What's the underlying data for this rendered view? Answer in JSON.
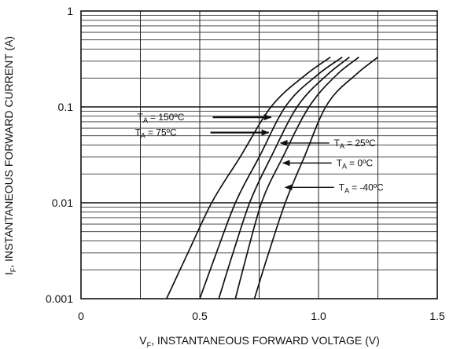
{
  "chart_data": {
    "type": "line",
    "title": "",
    "xlabel": {
      "prefix": "V",
      "sub": "F",
      "text": ", INSTANTANEOUS FORWARD VOLTAGE (V)"
    },
    "ylabel": {
      "prefix": "I",
      "sub": "F",
      "text": ", INSTANTANEOUS FORWARD CURRENT (A)"
    },
    "x_scale": "linear",
    "y_scale": "log",
    "xlim": [
      0,
      1.5
    ],
    "ylim": [
      0.001,
      1
    ],
    "x_ticks": [
      {
        "value": 0,
        "label": "0"
      },
      {
        "value": 0.5,
        "label": "0.5"
      },
      {
        "value": 1.0,
        "label": "1.0"
      },
      {
        "value": 1.5,
        "label": "1.5"
      }
    ],
    "y_ticks": [
      {
        "value": 1,
        "label": "1"
      },
      {
        "value": 0.1,
        "label": "0.1"
      },
      {
        "value": 0.01,
        "label": "0.01"
      },
      {
        "value": 0.001,
        "label": "0.001"
      }
    ],
    "grid": true,
    "series": [
      {
        "label_text": "= 150ºC",
        "points": [
          [
            0.36,
            0.001
          ],
          [
            0.45,
            0.003
          ],
          [
            0.55,
            0.01
          ],
          [
            0.67,
            0.03
          ],
          [
            0.8,
            0.1
          ],
          [
            0.95,
            0.22
          ],
          [
            1.05,
            0.33
          ]
        ]
      },
      {
        "label_text": "= 75ºC",
        "points": [
          [
            0.5,
            0.001
          ],
          [
            0.57,
            0.003
          ],
          [
            0.65,
            0.01
          ],
          [
            0.75,
            0.03
          ],
          [
            0.86,
            0.1
          ],
          [
            1.0,
            0.22
          ],
          [
            1.1,
            0.33
          ]
        ]
      },
      {
        "label_text": "= 25ºC",
        "points": [
          [
            0.58,
            0.001
          ],
          [
            0.64,
            0.003
          ],
          [
            0.71,
            0.01
          ],
          [
            0.8,
            0.03
          ],
          [
            0.91,
            0.1
          ],
          [
            1.04,
            0.22
          ],
          [
            1.13,
            0.33
          ]
        ]
      },
      {
        "label_text": "= 0ºC",
        "points": [
          [
            0.65,
            0.001
          ],
          [
            0.7,
            0.003
          ],
          [
            0.76,
            0.01
          ],
          [
            0.85,
            0.03
          ],
          [
            0.96,
            0.1
          ],
          [
            1.08,
            0.22
          ],
          [
            1.17,
            0.33
          ]
        ]
      },
      {
        "label_text": "= -40ºC",
        "points": [
          [
            0.73,
            0.001
          ],
          [
            0.79,
            0.003
          ],
          [
            0.86,
            0.01
          ],
          [
            0.94,
            0.03
          ],
          [
            1.03,
            0.1
          ],
          [
            1.16,
            0.22
          ],
          [
            1.25,
            0.33
          ]
        ]
      }
    ],
    "annotations": [
      {
        "series": 0,
        "prefix": "T",
        "sub": "A",
        "target": [
          0.8,
          0.078
        ],
        "side": "left"
      },
      {
        "series": 1,
        "prefix": "T",
        "sub": "A",
        "target": [
          0.79,
          0.054
        ],
        "side": "left"
      },
      {
        "series": 2,
        "prefix": "T",
        "sub": "A",
        "target": [
          0.84,
          0.042
        ],
        "side": "right"
      },
      {
        "series": 3,
        "prefix": "T",
        "sub": "A",
        "target": [
          0.85,
          0.026
        ],
        "side": "right"
      },
      {
        "series": 4,
        "prefix": "T",
        "sub": "A",
        "target": [
          0.86,
          0.0145
        ],
        "side": "right"
      }
    ]
  }
}
